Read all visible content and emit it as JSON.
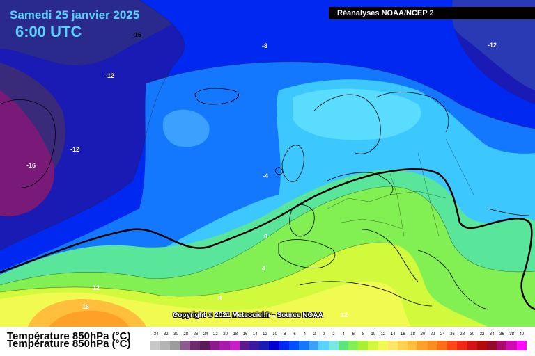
{
  "header": {
    "date": "Samedi 25 janvier 2025",
    "time": "6:00 UTC",
    "source": "Réanalyses NOAA/NCEP 2",
    "copyright": "Copyright © 2021 Meteociel.fr - Source NOAA"
  },
  "map": {
    "parameter": "Température 850hPa (°C)",
    "parameter_shadow": "Température 850hPa (°C)",
    "isotherm_labels": [
      "-16",
      "-12",
      "-8",
      "-12",
      "-12",
      "-16",
      "-4",
      "0",
      "4",
      "8",
      "12",
      "16",
      "12"
    ],
    "zero_isotherm_color": "#000000"
  },
  "legend": {
    "labels": [
      "-34",
      "-32",
      "-30",
      "-28",
      "-26",
      "-24",
      "-22",
      "-20",
      "-18",
      "-16",
      "-14",
      "-12",
      "-10",
      "-8",
      "-6",
      "-4",
      "-2",
      "0",
      "2",
      "4",
      "6",
      "8",
      "10",
      "12",
      "14",
      "16",
      "18",
      "20",
      "22",
      "24",
      "26",
      "28",
      "30",
      "32",
      "34",
      "36",
      "38",
      "40"
    ],
    "colors": [
      "#c8c8c8",
      "#b4b4b4",
      "#9c9c9c",
      "#8c5a8c",
      "#6e2a6e",
      "#5a1a5a",
      "#8c1a8c",
      "#aa1aaa",
      "#c81ec8",
      "#5a1a8c",
      "#3a1aa0",
      "#1a1ab4",
      "#0000d2",
      "#0028f0",
      "#0050ff",
      "#1478ff",
      "#3ca0ff",
      "#5ad2ff",
      "#7ae6e6",
      "#5ae67a",
      "#82f052",
      "#aaf032",
      "#d2fa3c",
      "#f0fa50",
      "#ffe664",
      "#ffd250",
      "#ffbe3c",
      "#ffa028",
      "#ff8c1e",
      "#ff6e14",
      "#ff4614",
      "#f02814",
      "#d21414",
      "#b40a0a",
      "#960a28",
      "#aa0a6e",
      "#d20ab4",
      "#ff0aff"
    ]
  }
}
